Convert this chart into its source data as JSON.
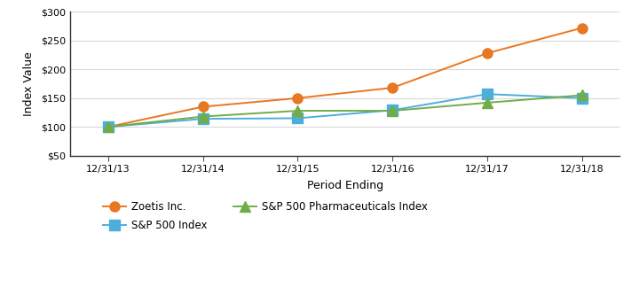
{
  "x_labels": [
    "12/31/13",
    "12/31/14",
    "12/31/15",
    "12/31/16",
    "12/31/17",
    "12/31/18"
  ],
  "zoetis": [
    100,
    135,
    150,
    168,
    228,
    272
  ],
  "sp500": [
    100,
    114,
    115,
    129,
    157,
    150
  ],
  "sp500pharma": [
    100,
    118,
    128,
    128,
    142,
    155
  ],
  "zoetis_color": "#E87722",
  "sp500_color": "#4DAEDC",
  "pharma_color": "#70AD47",
  "ylim": [
    50,
    300
  ],
  "yticks": [
    50,
    100,
    150,
    200,
    250,
    300
  ],
  "ylabel": "Index Value",
  "xlabel": "Period Ending",
  "legend_zoetis": "Zoetis Inc.",
  "legend_sp500": "S&P 500 Index",
  "legend_pharma": "S&P 500 Pharmaceuticals Index",
  "bg_color": "#FFFFFF",
  "grid_color": "#D9D9D9",
  "linewidth": 1.4,
  "markersize": 8
}
